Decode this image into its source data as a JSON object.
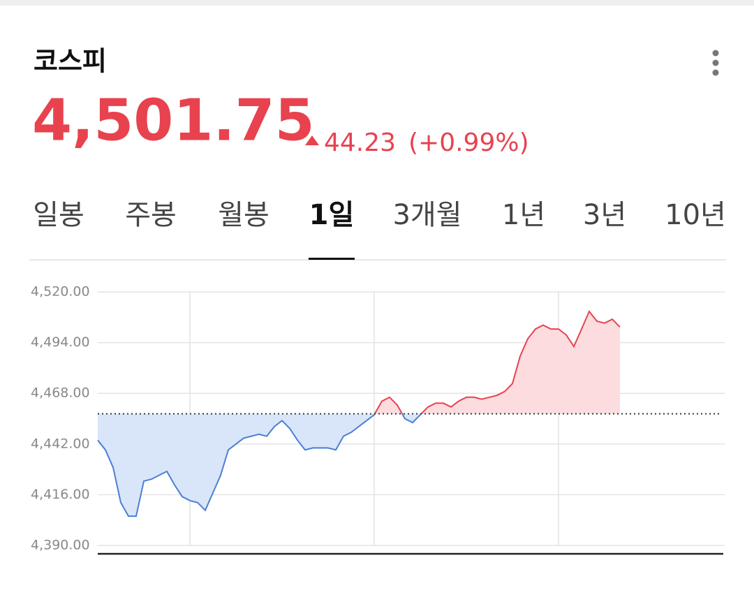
{
  "header": {
    "title": "코스피",
    "price": "4,501.75",
    "change": "44.23",
    "change_pct": "(+0.99%)"
  },
  "tabs": [
    "일봉",
    "주봉",
    "월봉",
    "1일",
    "3개월",
    "1년",
    "3년",
    "10년"
  ],
  "active_tab": 3,
  "chart_data": {
    "type": "line",
    "x": [
      0,
      5,
      10,
      15,
      20,
      25,
      30,
      35,
      40,
      45,
      50,
      55,
      60,
      65,
      70,
      75,
      80,
      85,
      90,
      95,
      100,
      105,
      110,
      115,
      120,
      125,
      130,
      135,
      140,
      145,
      150,
      155,
      160,
      165,
      170,
      175,
      180,
      185,
      190,
      195,
      200,
      205,
      210,
      215,
      220,
      225,
      230,
      235,
      240,
      245,
      250,
      255,
      260,
      265,
      270,
      275,
      280,
      285,
      290,
      295,
      300,
      305,
      310,
      315,
      320,
      325,
      330,
      335,
      340
    ],
    "values": [
      4444,
      4439,
      4430,
      4412,
      4405,
      4405,
      4423,
      4424,
      4426,
      4428,
      4421,
      4415,
      4413,
      4412,
      4408,
      4417,
      4426,
      4439,
      4442,
      4445,
      4446,
      4447,
      4446,
      4451,
      4454,
      4450,
      4444,
      4439,
      4440,
      4440,
      4440,
      4439,
      4446,
      4448,
      4451,
      4454,
      4457,
      4464,
      4466,
      4462,
      4455,
      4453,
      4457,
      4461,
      4463,
      4463,
      4461,
      4464,
      4466,
      4466,
      4465,
      4466,
      4467,
      4469,
      4473,
      4487,
      4496,
      4501,
      4503,
      4501,
      4501,
      4498,
      4492,
      4501,
      4510,
      4505,
      4504,
      4506,
      4502
    ],
    "baseline": 4457.52,
    "up_color": "#e8424f",
    "down_color": "#4a7fd4",
    "up_fill": "#fcdcdf",
    "down_fill": "#d9e5f8",
    "xlim": [
      0,
      390
    ],
    "xgrid": [
      60,
      180,
      300
    ],
    "ylim": [
      4390,
      4520
    ],
    "yticks": [
      {
        "value": 4390,
        "label": "4,390.00"
      },
      {
        "value": 4416,
        "label": "4,416.00"
      },
      {
        "value": 4442,
        "label": "4,442.00"
      },
      {
        "value": 4468,
        "label": "4,468.00"
      },
      {
        "value": 4494,
        "label": "4,494.00"
      },
      {
        "value": 4520,
        "label": "4,520.00"
      }
    ],
    "grid": true
  }
}
